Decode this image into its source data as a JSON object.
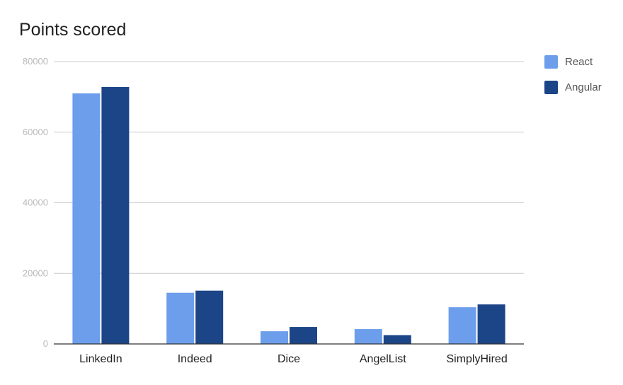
{
  "chart_data": {
    "type": "bar",
    "title": "Points scored",
    "categories": [
      "LinkedIn",
      "Indeed",
      "Dice",
      "AngelList",
      "SimplyHired"
    ],
    "series": [
      {
        "name": "React",
        "color": "#6d9eeb",
        "values": [
          71000,
          14500,
          3600,
          4200,
          10400
        ]
      },
      {
        "name": "Angular",
        "color": "#1c4587",
        "values": [
          72800,
          15100,
          4800,
          2500,
          11200
        ]
      }
    ],
    "yticks": [
      0,
      20000,
      40000,
      60000,
      80000
    ],
    "ylim": [
      0,
      80000
    ],
    "grid": true,
    "legend_position": "right"
  }
}
